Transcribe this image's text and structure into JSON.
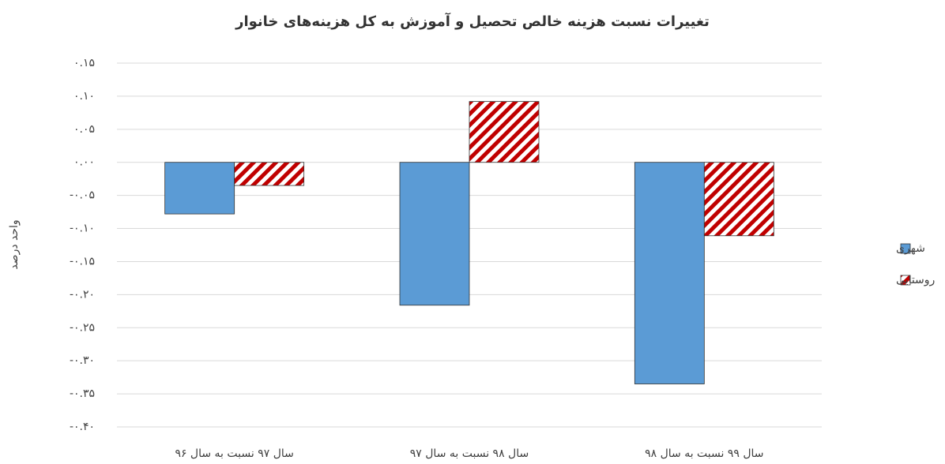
{
  "chart_data": {
    "type": "bar",
    "title": "تغییرات نسبت هزینه خالص تحصیل و آموزش به کل هزینه‌های خانوار",
    "y_label": "واحد درصد",
    "categories": [
      "سال ۹۷ نسبت به سال ۹۶",
      "سال ۹۸ نسبت به سال ۹۷",
      "سال ۹۹ نسبت به سال ۹۸"
    ],
    "series": [
      {
        "name": "شهری",
        "color": "#5b9bd5",
        "values": [
          -0.078,
          -0.216,
          -0.335
        ]
      },
      {
        "name": "روستایی",
        "color": "#c00000",
        "pattern": "hatch",
        "values": [
          -0.035,
          0.092,
          -0.111
        ]
      }
    ],
    "ylim": [
      -0.4,
      0.15
    ],
    "yticks": [
      {
        "value": 0.15,
        "label": "۰.۱۵"
      },
      {
        "value": 0.1,
        "label": "۰.۱۰"
      },
      {
        "value": 0.05,
        "label": "۰.۰۵"
      },
      {
        "value": 0,
        "label": "۰.۰۰"
      },
      {
        "value": -0.05,
        "label": "-۰.۰۵"
      },
      {
        "value": -0.1,
        "label": "-۰.۱۰"
      },
      {
        "value": -0.15,
        "label": "-۰.۱۵"
      },
      {
        "value": -0.2,
        "label": "-۰.۲۰"
      },
      {
        "value": -0.25,
        "label": "-۰.۲۵"
      },
      {
        "value": -0.3,
        "label": "-۰.۳۰"
      },
      {
        "value": -0.35,
        "label": "-۰.۳۵"
      },
      {
        "value": -0.4,
        "label": "-۰.۴۰"
      }
    ],
    "grid": true,
    "legend": "right"
  }
}
